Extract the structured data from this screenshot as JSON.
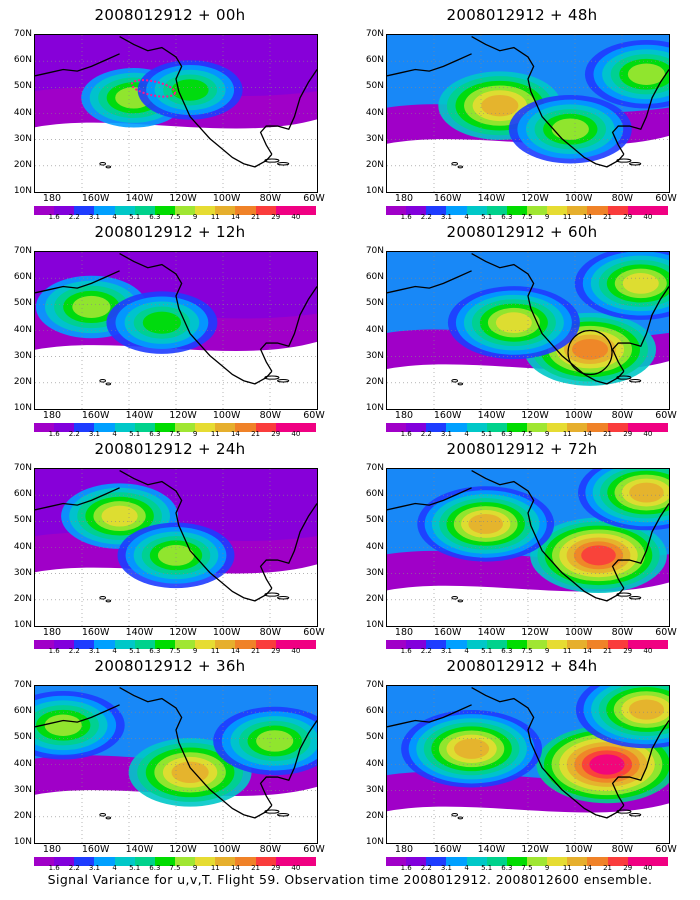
{
  "figure": {
    "caption": "Signal Variance for u,v,T. Flight 59. Observation time 2008012912. 2008012600 ensemble."
  },
  "panels": [
    {
      "title": "2008012912 + 00h",
      "intensity": 0.25,
      "focus": [
        [
          0.35,
          0.4
        ],
        [
          0.55,
          0.35
        ]
      ],
      "flight_track": true,
      "circle": false
    },
    {
      "title": "2008012912 + 48h",
      "intensity": 0.55,
      "focus": [
        [
          0.4,
          0.45
        ],
        [
          0.65,
          0.6
        ],
        [
          0.92,
          0.25
        ]
      ],
      "flight_track": false,
      "circle": false
    },
    {
      "title": "2008012912 + 12h",
      "intensity": 0.35,
      "focus": [
        [
          0.2,
          0.35
        ],
        [
          0.45,
          0.45
        ]
      ],
      "flight_track": false,
      "circle": false
    },
    {
      "title": "2008012912 + 60h",
      "intensity": 0.7,
      "focus": [
        [
          0.72,
          0.62
        ],
        [
          0.9,
          0.2
        ],
        [
          0.45,
          0.45
        ]
      ],
      "flight_track": false,
      "circle": true
    },
    {
      "title": "2008012912 + 24h",
      "intensity": 0.45,
      "focus": [
        [
          0.3,
          0.3
        ],
        [
          0.5,
          0.55
        ]
      ],
      "flight_track": false,
      "circle": false
    },
    {
      "title": "2008012912 + 72h",
      "intensity": 0.78,
      "focus": [
        [
          0.75,
          0.55
        ],
        [
          0.92,
          0.15
        ],
        [
          0.35,
          0.35
        ]
      ],
      "flight_track": false,
      "circle": false
    },
    {
      "title": "2008012912 + 36h",
      "intensity": 0.55,
      "focus": [
        [
          0.55,
          0.55
        ],
        [
          0.1,
          0.25
        ],
        [
          0.85,
          0.35
        ]
      ],
      "flight_track": false,
      "circle": false
    },
    {
      "title": "2008012912 + 84h",
      "intensity": 0.85,
      "focus": [
        [
          0.78,
          0.5
        ],
        [
          0.92,
          0.15
        ],
        [
          0.3,
          0.4
        ]
      ],
      "flight_track": false,
      "circle": false
    }
  ],
  "axes": {
    "lat_labels": [
      "70N",
      "60N",
      "50N",
      "40N",
      "30N",
      "20N",
      "10N"
    ],
    "lon_labels": [
      "180",
      "160W",
      "140W",
      "120W",
      "100W",
      "80W",
      "60W"
    ]
  },
  "colorbar": {
    "labels": [
      "1.6",
      "2.2",
      "3.1",
      "4",
      "5.1",
      "6.3",
      "7.5",
      "9",
      "11",
      "14",
      "21",
      "29",
      "40"
    ],
    "colors": [
      "#a000c8",
      "#8200dc",
      "#1e3cff",
      "#00a0ff",
      "#00c8c8",
      "#00d28c",
      "#00dc00",
      "#a0e632",
      "#e6dc32",
      "#e6af2d",
      "#f08228",
      "#fa3c3c",
      "#f00082"
    ]
  }
}
